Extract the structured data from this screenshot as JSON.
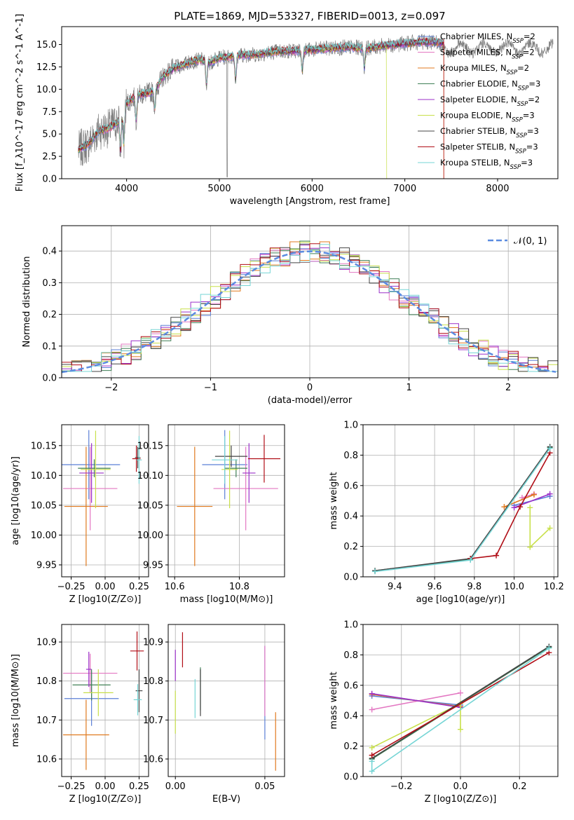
{
  "colors": {
    "Chabrier MILES": "#5b7fd6",
    "Salpeter MILES": "#e377c2",
    "Kroupa MILES": "#e07a1f",
    "Chabrier ELODIE": "#3f7f55",
    "Salpeter ELODIE": "#9b30c9",
    "Kroupa ELODIE": "#c8e04a",
    "Chabrier STELIB": "#444444",
    "Salpeter STELIB": "#b00d16",
    "Kroupa STELIB": "#76d5d5",
    "data": "#7f7f7f",
    "normal": "#5b8be0"
  },
  "chart_data": [
    {
      "id": "spectrum",
      "type": "line",
      "title": "PLATE=1869, MJD=53327, FIBERID=0013, z=0.097",
      "xlabel": "wavelength [Angstrom, rest frame]",
      "ylabel": "Flux [f_λ10^-17 erg cm^-2 s^-1 A^-1]",
      "xlim": [
        3300,
        8650
      ],
      "ylim": [
        0,
        17
      ],
      "xticks": [
        "4000",
        "5000",
        "6000",
        "7000",
        "8000"
      ],
      "yticks": [
        "0.0",
        "2.5",
        "5.0",
        "7.5",
        "10.0",
        "12.5",
        "15.0"
      ],
      "legend_position": "top-right",
      "legend": [
        {
          "model": "Chabrier MILES",
          "nssp": "2"
        },
        {
          "model": "Salpeter MILES",
          "nssp": "2"
        },
        {
          "model": "Kroupa MILES",
          "nssp": "2"
        },
        {
          "model": "Chabrier ELODIE",
          "nssp": "3"
        },
        {
          "model": "Salpeter ELODIE",
          "nssp": "2"
        },
        {
          "model": "Kroupa ELODIE",
          "nssp": "3"
        },
        {
          "model": "Chabrier STELIB",
          "nssp": "3"
        },
        {
          "model": "Salpeter STELIB",
          "nssp": "3"
        },
        {
          "model": "Kroupa STELIB",
          "nssp": "3"
        }
      ],
      "continuum": {
        "x": [
          3480,
          3600,
          3700,
          3800,
          3900,
          4000,
          4100,
          4200,
          4300,
          4400,
          4500,
          4600,
          4700,
          4800,
          4900,
          5000,
          5200,
          5400,
          5600,
          5800,
          6000,
          6200,
          6400,
          6600,
          6800,
          7000,
          7200,
          7400
        ],
        "y": [
          3.2,
          4.0,
          5.4,
          5.6,
          6.3,
          8.4,
          9.3,
          9.5,
          9.8,
          11.5,
          12.3,
          12.7,
          13.1,
          13.3,
          13.0,
          13.5,
          13.8,
          13.9,
          14.2,
          14.3,
          14.4,
          14.6,
          14.7,
          14.6,
          14.9,
          15.1,
          15.3,
          15.2
        ]
      }
    },
    {
      "id": "residuals",
      "type": "line",
      "xlabel": "(data-model)/error",
      "ylabel": "Normed distribution",
      "xlim": [
        -2.5,
        2.5
      ],
      "ylim": [
        0,
        0.48
      ],
      "xticks": [
        "−2",
        "−1",
        "0",
        "1",
        "2"
      ],
      "yticks": [
        "0.0",
        "0.1",
        "0.2",
        "0.3",
        "0.4"
      ],
      "grid": true,
      "legend_position": "top-right",
      "legend": "𝒩(0, 1)",
      "bin_width": 0.1
    },
    {
      "id": "age-vs-Z",
      "type": "scatter",
      "xlabel": "Z [log10(Z/Z⊙)]",
      "ylabel": "age  [log10(age/yr)]",
      "xlim": [
        -0.32,
        0.32
      ],
      "ylim": [
        9.93,
        10.185
      ],
      "xticks": [
        "−0.25",
        "0.00",
        "0.25"
      ],
      "yticks": [
        "9.95",
        "10.00",
        "10.05",
        "10.10",
        "10.15"
      ],
      "grid": true,
      "points": [
        {
          "model": "Chabrier MILES",
          "x": -0.12,
          "xerr": 0.23,
          "y": 10.118,
          "yerr": 0.058
        },
        {
          "model": "Salpeter MILES",
          "x": -0.11,
          "xerr": 0.2,
          "y": 10.078,
          "yerr": 0.07
        },
        {
          "model": "Kroupa MILES",
          "x": -0.14,
          "xerr": 0.16,
          "y": 10.048,
          "yerr": 0.1
        },
        {
          "model": "Chabrier ELODIE",
          "x": -0.08,
          "xerr": 0.12,
          "y": 10.112,
          "yerr": 0.015
        },
        {
          "model": "Salpeter ELODIE",
          "x": -0.1,
          "xerr": 0.09,
          "y": 10.104,
          "yerr": 0.05
        },
        {
          "model": "Kroupa ELODIE",
          "x": -0.07,
          "xerr": 0.11,
          "y": 10.11,
          "yerr": 0.065
        },
        {
          "model": "Chabrier STELIB",
          "x": 0.24,
          "xerr": 0.02,
          "y": 10.13,
          "yerr": 0.018
        },
        {
          "model": "Salpeter STELIB",
          "x": 0.23,
          "xerr": 0.03,
          "y": 10.128,
          "yerr": 0.022
        },
        {
          "model": "Kroupa STELIB",
          "x": 0.25,
          "xerr": 0.02,
          "y": 10.126,
          "yerr": 0.04
        }
      ]
    },
    {
      "id": "age-vs-mass",
      "type": "scatter",
      "xlabel": "mass [log10(M/M⊙)]",
      "ylabel": "",
      "xlim": [
        10.58,
        10.94
      ],
      "ylim": [
        9.93,
        10.185
      ],
      "xticks": [
        "10.6",
        "10.8"
      ],
      "yticks": [
        "9.95",
        "10.00",
        "10.05",
        "10.10",
        "10.15"
      ],
      "grid": true,
      "points": [
        {
          "model": "Chabrier MILES",
          "x": 10.755,
          "xerr": 0.07,
          "y": 10.118,
          "yerr": 0.058
        },
        {
          "model": "Salpeter MILES",
          "x": 10.82,
          "xerr": 0.1,
          "y": 10.078,
          "yerr": 0.07
        },
        {
          "model": "Kroupa MILES",
          "x": 10.662,
          "xerr": 0.055,
          "y": 10.048,
          "yerr": 0.1
        },
        {
          "model": "Chabrier ELODIE",
          "x": 10.79,
          "xerr": 0.035,
          "y": 10.112,
          "yerr": 0.015
        },
        {
          "model": "Salpeter ELODIE",
          "x": 10.83,
          "xerr": 0.02,
          "y": 10.104,
          "yerr": 0.05
        },
        {
          "model": "Kroupa ELODIE",
          "x": 10.77,
          "xerr": 0.025,
          "y": 10.11,
          "yerr": 0.065
        },
        {
          "model": "Chabrier STELIB",
          "x": 10.775,
          "xerr": 0.05,
          "y": 10.132,
          "yerr": 0.018
        },
        {
          "model": "Salpeter STELIB",
          "x": 10.877,
          "xerr": 0.05,
          "y": 10.128,
          "yerr": 0.04
        },
        {
          "model": "Kroupa STELIB",
          "x": 10.755,
          "xerr": 0.04,
          "y": 10.126,
          "yerr": 0.04
        }
      ]
    },
    {
      "id": "massweight-vs-age",
      "type": "line",
      "xlabel": "age  [log10(age/yr)]",
      "ylabel": "mass weight",
      "xlim": [
        9.24,
        10.22
      ],
      "ylim": [
        0,
        1
      ],
      "xticks": [
        "9.4",
        "9.6",
        "9.8",
        "10.0",
        "10.2"
      ],
      "yticks": [
        "0.0",
        "0.2",
        "0.4",
        "0.6",
        "0.8",
        "1.0"
      ],
      "grid": true,
      "series": [
        {
          "model": "Chabrier MILES",
          "x": [
            10.0,
            10.18
          ],
          "y": [
            0.47,
            0.53
          ]
        },
        {
          "model": "Salpeter MILES",
          "x": [
            10.04,
            10.1
          ],
          "y": [
            0.52,
            0.545
          ]
        },
        {
          "model": "Kroupa MILES",
          "x": [
            9.95,
            10.1
          ],
          "y": [
            0.46,
            0.54
          ]
        },
        {
          "model": "Chabrier ELODIE",
          "x": [
            9.3,
            9.78,
            10.18
          ],
          "y": [
            0.04,
            0.115,
            0.85
          ]
        },
        {
          "model": "Salpeter ELODIE",
          "x": [
            10.0,
            10.18
          ],
          "y": [
            0.455,
            0.545
          ]
        },
        {
          "model": "Kroupa ELODIE",
          "x": [
            10.08,
            10.08,
            10.18
          ],
          "y": [
            0.455,
            0.195,
            0.32
          ]
        },
        {
          "model": "Chabrier STELIB",
          "x": [
            9.3,
            9.78,
            10.18
          ],
          "y": [
            0.04,
            0.12,
            0.855
          ]
        },
        {
          "model": "Salpeter STELIB",
          "x": [
            9.78,
            9.91,
            10.03,
            10.18
          ],
          "y": [
            0.12,
            0.14,
            0.46,
            0.815
          ]
        },
        {
          "model": "Kroupa STELIB",
          "x": [
            9.3,
            9.78,
            10.18
          ],
          "y": [
            0.035,
            0.11,
            0.845
          ]
        }
      ]
    },
    {
      "id": "mass-vs-Z",
      "type": "scatter",
      "xlabel": "Z [log10(Z/Z⊙)]",
      "ylabel": "mass [log10(M/M⊙)]",
      "xlim": [
        -0.32,
        0.32
      ],
      "ylim": [
        10.555,
        10.945
      ],
      "xticks": [
        "−0.25",
        "0.00",
        "0.25"
      ],
      "yticks": [
        "10.6",
        "10.7",
        "10.8",
        "10.9"
      ],
      "grid": true,
      "points": [
        {
          "model": "Chabrier MILES",
          "x": -0.1,
          "xerr": 0.2,
          "y": 10.755,
          "yerr": 0.07
        },
        {
          "model": "Salpeter MILES",
          "x": -0.11,
          "xerr": 0.2,
          "y": 10.82,
          "yerr": 0.05
        },
        {
          "model": "Kroupa MILES",
          "x": -0.14,
          "xerr": 0.17,
          "y": 10.662,
          "yerr": 0.09
        },
        {
          "model": "Chabrier ELODIE",
          "x": -0.1,
          "xerr": 0.14,
          "y": 10.79,
          "yerr": 0.04
        },
        {
          "model": "Salpeter ELODIE",
          "x": -0.12,
          "xerr": 0.02,
          "y": 10.83,
          "yerr": 0.045
        },
        {
          "model": "Kroupa ELODIE",
          "x": -0.05,
          "xerr": 0.11,
          "y": 10.77,
          "yerr": 0.06
        },
        {
          "model": "Chabrier STELIB",
          "x": 0.25,
          "xerr": 0.025,
          "y": 10.775,
          "yerr": 0.055
        },
        {
          "model": "Salpeter STELIB",
          "x": 0.235,
          "xerr": 0.05,
          "y": 10.877,
          "yerr": 0.05
        },
        {
          "model": "Kroupa STELIB",
          "x": 0.24,
          "xerr": 0.03,
          "y": 10.752,
          "yerr": 0.04
        }
      ]
    },
    {
      "id": "mass-vs-EBV",
      "type": "scatter",
      "xlabel": "E(B-V)",
      "ylabel": "",
      "xlim": [
        -0.004,
        0.061
      ],
      "ylim": [
        10.555,
        10.945
      ],
      "xticks": [
        "0.00",
        "0.05"
      ],
      "yticks": [
        "10.6",
        "10.7",
        "10.8",
        "10.9"
      ],
      "grid": true,
      "points": [
        {
          "model": "Chabrier MILES",
          "x": 0.05,
          "y": 10.77,
          "yerr": 0.12
        },
        {
          "model": "Salpeter MILES",
          "x": 0.05,
          "y": 10.8,
          "yerr": 0.09
        },
        {
          "model": "Kroupa MILES",
          "x": 0.056,
          "y": 10.645,
          "yerr": 0.075
        },
        {
          "model": "Chabrier ELODIE",
          "x": 0.014,
          "y": 10.78,
          "yerr": 0.055
        },
        {
          "model": "Salpeter ELODIE",
          "x": 0.0,
          "y": 10.84,
          "yerr": 0.04
        },
        {
          "model": "Kroupa ELODIE",
          "x": 0.0,
          "y": 10.72,
          "yerr": 0.055
        },
        {
          "model": "Chabrier STELIB",
          "x": 0.014,
          "y": 10.77,
          "yerr": 0.06
        },
        {
          "model": "Salpeter STELIB",
          "x": 0.004,
          "y": 10.88,
          "yerr": 0.045
        },
        {
          "model": "Kroupa STELIB",
          "x": 0.011,
          "y": 10.755,
          "yerr": 0.05
        }
      ]
    },
    {
      "id": "massweight-vs-Z",
      "type": "line",
      "xlabel": "Z [log10(Z/Z⊙)]",
      "ylabel": "mass weight",
      "xlim": [
        -0.33,
        0.33
      ],
      "ylim": [
        0,
        1
      ],
      "xticks": [
        "−0.2",
        "0.0",
        "0.2"
      ],
      "yticks": [
        "0.0",
        "0.2",
        "0.4",
        "0.6",
        "0.8",
        "1.0"
      ],
      "grid": true,
      "series": [
        {
          "model": "Chabrier MILES",
          "x": [
            -0.3,
            0.0
          ],
          "y": [
            0.53,
            0.47
          ]
        },
        {
          "model": "Salpeter MILES",
          "x": [
            -0.3,
            0.0
          ],
          "y": [
            0.44,
            0.55
          ]
        },
        {
          "model": "Kroupa MILES",
          "x": [
            -0.3,
            0.0
          ],
          "y": [
            0.54,
            0.46
          ]
        },
        {
          "model": "Chabrier ELODIE",
          "x": [
            -0.3,
            0.3
          ],
          "y": [
            0.115,
            0.85
          ]
        },
        {
          "model": "Salpeter ELODIE",
          "x": [
            -0.3,
            0.0
          ],
          "y": [
            0.545,
            0.455
          ]
        },
        {
          "model": "Kroupa ELODIE",
          "x": [
            -0.3,
            0.0,
            0.0
          ],
          "y": [
            0.19,
            0.48,
            0.31
          ]
        },
        {
          "model": "Chabrier STELIB",
          "x": [
            -0.3,
            0.3
          ],
          "y": [
            0.12,
            0.855
          ]
        },
        {
          "model": "Salpeter STELIB",
          "x": [
            -0.3,
            0.3
          ],
          "y": [
            0.14,
            0.815
          ]
        },
        {
          "model": "Kroupa STELIB",
          "x": [
            -0.3,
            -0.3,
            0.3
          ],
          "y": [
            0.1,
            0.035,
            0.845
          ]
        }
      ]
    }
  ]
}
